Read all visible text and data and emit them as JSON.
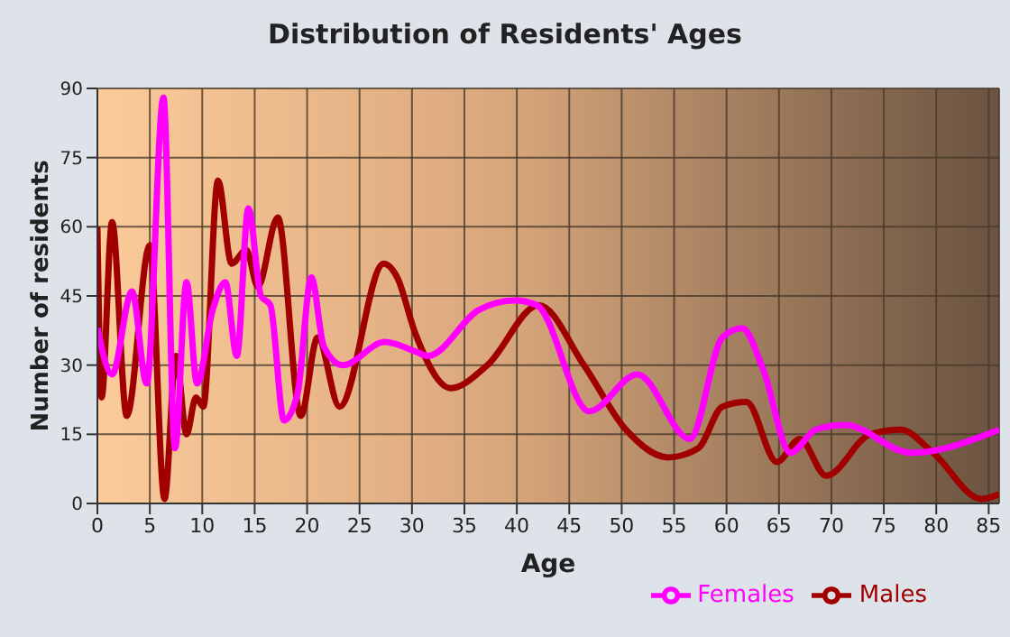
{
  "chart_data": {
    "type": "line",
    "title": "Distribution of Residents' Ages",
    "xlabel": "Age",
    "ylabel": "Number of residents",
    "series": [
      {
        "name": "Males",
        "color": "#a00000",
        "x": [
          0,
          0.4,
          1.4,
          2.8,
          5,
          6.4,
          7.5,
          8.5,
          9.4,
          10.1,
          11.5,
          12.8,
          14.2,
          15.3,
          17.2,
          19.4,
          21,
          23.1,
          27.3,
          28.6,
          30.3,
          33.7,
          37.2,
          42.1,
          46.4,
          50.4,
          54.4,
          57.3,
          59.6,
          61.9,
          64.8,
          67,
          69.5,
          73.7,
          76.6,
          79.7,
          84.3,
          86
        ],
        "values": [
          60,
          23,
          61,
          19,
          56,
          1,
          32,
          15,
          23,
          21,
          70,
          52,
          55,
          47,
          62,
          19,
          36,
          21,
          52,
          49,
          37,
          25,
          30,
          43,
          30,
          16,
          10,
          12,
          21,
          22,
          9,
          14,
          6,
          15,
          16,
          11,
          1,
          2
        ]
      },
      {
        "name": "Females",
        "color": "#ff00ff",
        "x": [
          0,
          1.4,
          3.3,
          4.7,
          6.3,
          7.4,
          8.5,
          9.5,
          11,
          12.2,
          13.3,
          14.4,
          15.6,
          16.5,
          17.8,
          19.1,
          20.4,
          21.6,
          23.4,
          27.4,
          30.3,
          31.5,
          36.4,
          39.8,
          41.9,
          46.9,
          51.5,
          56.5,
          59.6,
          61.5,
          63.5,
          66.1,
          68.5,
          71.3,
          77.6,
          86
        ],
        "values": [
          38,
          28,
          46,
          26,
          88,
          12,
          48,
          26,
          42,
          48,
          32,
          64,
          45,
          43,
          18,
          24,
          49,
          34,
          30,
          35,
          33,
          32,
          42,
          44,
          43,
          20,
          28,
          14,
          36,
          38,
          29,
          11,
          16,
          17,
          11,
          16
        ]
      }
    ],
    "xlim": [
      0,
      86
    ],
    "xticks": [
      0,
      5,
      10,
      15,
      20,
      25,
      30,
      35,
      40,
      45,
      50,
      55,
      60,
      65,
      70,
      75,
      80,
      85
    ],
    "ylim": [
      0,
      90
    ],
    "yticks": [
      0,
      15,
      30,
      45,
      60,
      75,
      90
    ],
    "grid": true,
    "legend": "bottom right",
    "marker": "none",
    "line_style": "solid"
  }
}
